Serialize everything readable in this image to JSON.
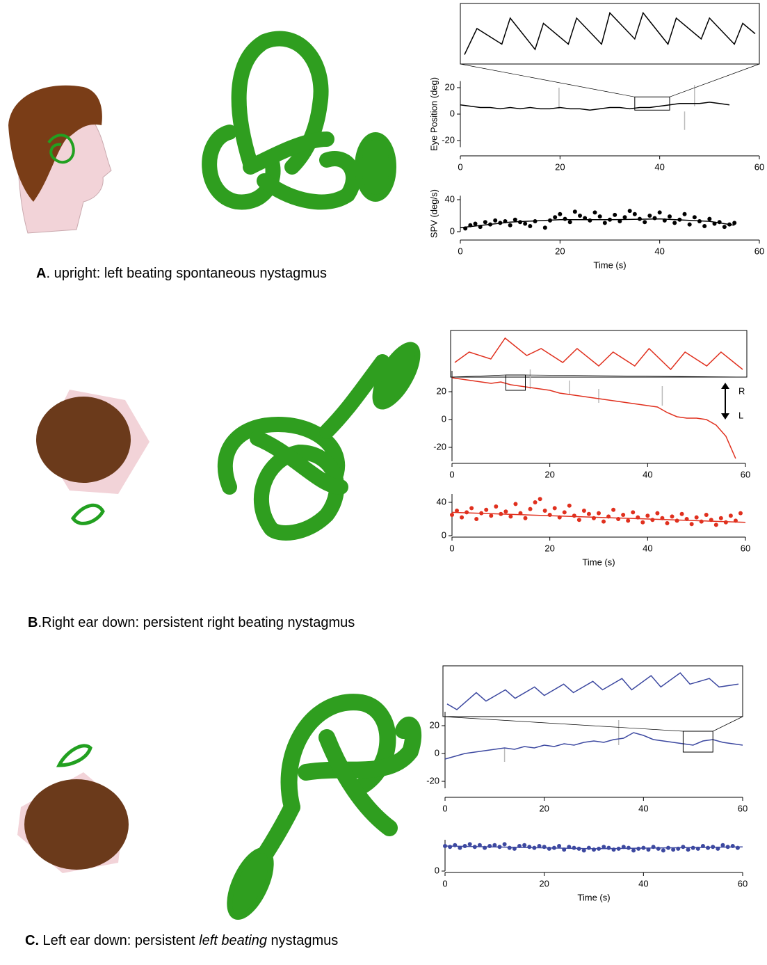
{
  "panels": [
    {
      "letter": "A",
      "text": ". upright: left beating spontaneous nystagmus"
    },
    {
      "letter": "B",
      "text": ".Right ear down: persistent right beating nystagmus"
    },
    {
      "letter": "C.",
      "text": " Left ear down: persistent ",
      "italic": "left beating",
      "tail": " nystagmus"
    }
  ],
  "chart_data": [
    {
      "type": "line",
      "xlim": [
        35,
        42
      ],
      "ylim": [
        3,
        13
      ],
      "series": [
        {
          "color": "#000000",
          "x": [
            35,
            35.3,
            35.9,
            36.1,
            36.7,
            36.9,
            37.5,
            37.7,
            38.3,
            38.5,
            39.1,
            39.3,
            39.9,
            40.1,
            40.7,
            40.9,
            41.5,
            41.7,
            42
          ],
          "values": [
            4,
            9,
            6,
            11,
            5,
            10,
            6,
            11,
            6,
            12,
            7,
            12,
            6,
            11,
            7,
            11,
            6,
            10,
            8
          ]
        }
      ]
    },
    {
      "type": "line",
      "y_label": "Eye Position (deg)",
      "xlim": [
        0,
        60
      ],
      "ylim": [
        -25,
        25
      ],
      "xticks": [
        0,
        20,
        40,
        60
      ],
      "yticks": [
        -20,
        0,
        20
      ],
      "series": [
        {
          "color": "#bbbbbb",
          "x": [
            19.8,
            19.8,
            19.8,
            45,
            45,
            45,
            47,
            47
          ],
          "values": [
            20,
            4,
            null,
            2,
            -12,
            null,
            22,
            6
          ]
        },
        {
          "color": "#000000",
          "x": [
            0,
            2,
            4,
            6,
            8,
            10,
            12,
            14,
            16,
            18,
            20,
            22,
            24,
            26,
            28,
            30,
            32,
            34,
            36,
            38,
            40,
            42,
            44,
            46,
            48,
            50,
            52,
            54
          ],
          "values": [
            7,
            6,
            5,
            5,
            4,
            5,
            4,
            5,
            4,
            4,
            5,
            4,
            4,
            3,
            4,
            5,
            5,
            4,
            5,
            5,
            6,
            7,
            8,
            8,
            8,
            9,
            8,
            7
          ]
        }
      ]
    },
    {
      "type": "scatter",
      "y_label": "SPV (deg/s)",
      "x_label": "Time (s)",
      "xlim": [
        0,
        60
      ],
      "ylim": [
        0,
        45
      ],
      "xticks": [
        0,
        20,
        40,
        60
      ],
      "yticks": [
        0,
        40
      ],
      "series": [
        {
          "color": "#000000",
          "mode": "markers",
          "x": [
            1,
            2,
            3,
            4,
            5,
            6,
            7,
            8,
            9,
            10,
            11,
            12,
            13,
            14,
            15,
            17,
            18,
            19,
            20,
            21,
            22,
            23,
            24,
            25,
            26,
            27,
            28,
            29,
            30,
            31,
            32,
            33,
            34,
            35,
            36,
            37,
            38,
            39,
            40,
            41,
            42,
            43,
            44,
            45,
            46,
            47,
            48,
            49,
            50,
            51,
            52,
            53,
            54,
            55
          ],
          "values": [
            4,
            8,
            10,
            6,
            12,
            9,
            14,
            11,
            13,
            8,
            15,
            12,
            10,
            7,
            13,
            5,
            14,
            18,
            22,
            16,
            12,
            25,
            20,
            17,
            14,
            24,
            19,
            11,
            15,
            21,
            13,
            18,
            26,
            22,
            16,
            12,
            20,
            17,
            24,
            14,
            19,
            11,
            15,
            22,
            9,
            18,
            13,
            7,
            16,
            10,
            12,
            6,
            9,
            11
          ]
        },
        {
          "color": "#000000",
          "mode": "line",
          "x": [
            0,
            10,
            20,
            30,
            40,
            50,
            55
          ],
          "values": [
            5,
            12,
            15,
            15,
            16,
            13,
            8
          ]
        }
      ]
    },
    {
      "type": "line",
      "xlim": [
        11,
        15
      ],
      "ylim": [
        21,
        32
      ],
      "series": [
        {
          "color": "#e0301e",
          "x": [
            11,
            11.2,
            11.5,
            11.7,
            12,
            12.2,
            12.5,
            12.7,
            13,
            13.2,
            13.5,
            13.7,
            14,
            14.2,
            14.5,
            14.7,
            15
          ],
          "values": [
            24,
            27,
            25,
            31,
            26,
            28,
            24,
            28,
            23,
            27,
            23,
            28,
            22,
            27,
            23,
            27,
            22
          ]
        }
      ]
    },
    {
      "type": "line",
      "xlim": [
        0,
        60
      ],
      "ylim": [
        -30,
        35
      ],
      "xticks": [
        0,
        20,
        40,
        60
      ],
      "yticks": [
        -20,
        0,
        20
      ],
      "annotations": [
        "R",
        "L"
      ],
      "series": [
        {
          "color": "#bbbbbb",
          "x": [
            16,
            16,
            16,
            24,
            24,
            24,
            30,
            30,
            30,
            43,
            43
          ],
          "values": [
            22,
            36,
            null,
            18,
            28,
            null,
            12,
            22,
            null,
            10,
            24
          ]
        },
        {
          "color": "#e0301e",
          "x": [
            0,
            2,
            4,
            6,
            8,
            10,
            12,
            14,
            16,
            18,
            20,
            22,
            24,
            26,
            28,
            30,
            32,
            34,
            36,
            38,
            40,
            42,
            44,
            46,
            48,
            50,
            52,
            54,
            56,
            58
          ],
          "values": [
            30,
            29,
            28,
            27,
            26,
            27,
            25,
            24,
            23,
            22,
            21,
            19,
            18,
            17,
            16,
            15,
            14,
            13,
            12,
            11,
            10,
            9,
            5,
            2,
            1,
            1,
            0,
            -4,
            -12,
            -28
          ]
        }
      ]
    },
    {
      "type": "scatter",
      "x_label": "Time (s)",
      "xlim": [
        0,
        60
      ],
      "ylim": [
        0,
        50
      ],
      "xticks": [
        0,
        20,
        40,
        60
      ],
      "yticks": [
        0,
        40
      ],
      "series": [
        {
          "color": "#e0301e",
          "mode": "markers",
          "x": [
            0,
            1,
            2,
            3,
            4,
            5,
            6,
            7,
            8,
            9,
            10,
            11,
            12,
            13,
            14,
            15,
            16,
            17,
            18,
            19,
            20,
            21,
            22,
            23,
            24,
            25,
            26,
            27,
            28,
            29,
            30,
            31,
            32,
            33,
            34,
            35,
            36,
            37,
            38,
            39,
            40,
            41,
            42,
            43,
            44,
            45,
            46,
            47,
            48,
            49,
            50,
            51,
            52,
            53,
            54,
            55,
            56,
            57,
            58,
            59
          ],
          "values": [
            25,
            30,
            22,
            28,
            33,
            20,
            27,
            31,
            24,
            35,
            26,
            29,
            23,
            38,
            27,
            21,
            32,
            40,
            44,
            30,
            25,
            33,
            22,
            28,
            36,
            24,
            19,
            30,
            26,
            21,
            27,
            17,
            23,
            31,
            20,
            25,
            18,
            28,
            22,
            16,
            24,
            19,
            27,
            21,
            15,
            23,
            18,
            26,
            20,
            14,
            22,
            17,
            25,
            19,
            13,
            21,
            16,
            24,
            18,
            27
          ]
        },
        {
          "color": "#e0301e",
          "mode": "line",
          "x": [
            0,
            30,
            60
          ],
          "values": [
            28,
            22,
            16
          ]
        }
      ]
    },
    {
      "type": "line",
      "xlim": [
        48,
        54
      ],
      "ylim": [
        1,
        16
      ],
      "series": [
        {
          "color": "#3c48a0",
          "x": [
            48,
            48.2,
            48.6,
            48.8,
            49.2,
            49.4,
            49.8,
            50,
            50.4,
            50.6,
            51,
            51.2,
            51.6,
            51.8,
            52.2,
            52.4,
            52.8,
            53,
            53.4,
            53.6,
            54
          ],
          "values": [
            4,
            2,
            8,
            5,
            9,
            6,
            10,
            7,
            11,
            8,
            12,
            9,
            13,
            9,
            14,
            10,
            15,
            11,
            13,
            10,
            11
          ]
        }
      ]
    },
    {
      "type": "line",
      "xlim": [
        0,
        60
      ],
      "ylim": [
        -25,
        30
      ],
      "xticks": [
        0,
        20,
        40,
        60
      ],
      "yticks": [
        -20,
        0,
        20
      ],
      "series": [
        {
          "color": "#bbbbbb",
          "x": [
            12,
            12,
            12,
            35,
            35
          ],
          "values": [
            4,
            -6,
            null,
            24,
            6
          ]
        },
        {
          "color": "#3c48a0",
          "x": [
            0,
            2,
            4,
            6,
            8,
            10,
            12,
            14,
            16,
            18,
            20,
            22,
            24,
            26,
            28,
            30,
            32,
            34,
            36,
            38,
            40,
            42,
            44,
            46,
            48,
            50,
            52,
            54,
            56,
            58,
            60
          ],
          "values": [
            -4,
            -2,
            0,
            1,
            2,
            3,
            4,
            3,
            5,
            4,
            6,
            5,
            7,
            6,
            8,
            9,
            8,
            10,
            11,
            15,
            13,
            10,
            9,
            8,
            7,
            6,
            9,
            10,
            8,
            7,
            6
          ]
        }
      ]
    },
    {
      "type": "scatter",
      "x_label": "Time (s)",
      "xlim": [
        0,
        60
      ],
      "ylim": [
        0,
        35
      ],
      "xticks": [
        0,
        20,
        40,
        60
      ],
      "yticks": [
        0
      ],
      "series": [
        {
          "color": "#3c48a0",
          "mode": "markers",
          "x": [
            0,
            1,
            2,
            3,
            4,
            5,
            6,
            7,
            8,
            9,
            10,
            11,
            12,
            13,
            14,
            15,
            16,
            17,
            18,
            19,
            20,
            21,
            22,
            23,
            24,
            25,
            26,
            27,
            28,
            29,
            30,
            31,
            32,
            33,
            34,
            35,
            36,
            37,
            38,
            39,
            40,
            41,
            42,
            43,
            44,
            45,
            46,
            47,
            48,
            49,
            50,
            51,
            52,
            53,
            54,
            55,
            56,
            57,
            58,
            59
          ],
          "values": [
            28,
            27,
            29,
            26,
            28,
            30,
            27,
            29,
            26,
            28,
            29,
            27,
            30,
            26,
            25,
            28,
            29,
            27,
            26,
            28,
            27,
            25,
            26,
            28,
            24,
            27,
            26,
            25,
            23,
            26,
            24,
            25,
            27,
            26,
            24,
            25,
            27,
            26,
            23,
            25,
            26,
            24,
            27,
            25,
            23,
            26,
            24,
            25,
            27,
            24,
            26,
            25,
            28,
            26,
            27,
            25,
            29,
            27,
            28,
            26
          ]
        },
        {
          "color": "#3c48a0",
          "mode": "line",
          "x": [
            0,
            30,
            60
          ],
          "values": [
            28,
            25,
            27
          ]
        }
      ]
    }
  ]
}
